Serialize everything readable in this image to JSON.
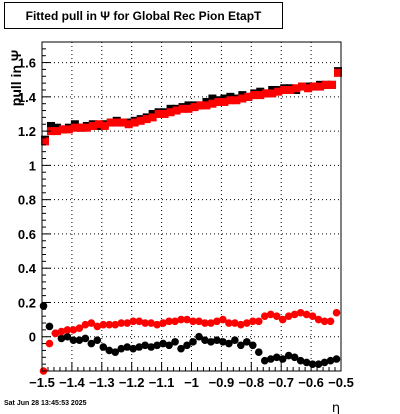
{
  "title": "Fitted pull in  Ψ  for Global Rec Pion EtapT",
  "timestamp": "Sat Jun 28 13:45:53 2025",
  "chart_data": {
    "type": "scatter",
    "title": "Fitted pull in  Ψ  for Global Rec Pion EtapT",
    "xlabel": "η",
    "ylabel": "pull in Ψ",
    "xlim": [
      -1.5,
      -0.5
    ],
    "ylim": [
      -0.2,
      1.72
    ],
    "grid": true,
    "xticks": [
      -1.5,
      -1.4,
      -1.3,
      -1.2,
      -1.1,
      -1.0,
      -0.9,
      -0.8,
      -0.7,
      -0.6,
      -0.5
    ],
    "xtick_labels": [
      "−1.5",
      "−1.4",
      "−1.3",
      "−1.2",
      "−1.1",
      "−1",
      "−0.9",
      "−0.8",
      "−0.7",
      "−0.6",
      "−0.5"
    ],
    "yticks": [
      0,
      0.2,
      0.4,
      0.6,
      0.8,
      1.0,
      1.2,
      1.4,
      1.6
    ],
    "ytick_labels": [
      "0",
      "0.2",
      "0.4",
      "0.6",
      "0.8",
      "1",
      "1.2",
      "1.4",
      "1.6"
    ],
    "series": [
      {
        "name": "",
        "color": "#000000",
        "marker": "square",
        "x": [
          -1.49,
          -1.47,
          -1.45,
          -1.43,
          -1.41,
          -1.39,
          -1.37,
          -1.35,
          -1.33,
          -1.31,
          -1.29,
          -1.27,
          -1.25,
          -1.23,
          -1.21,
          -1.19,
          -1.17,
          -1.15,
          -1.13,
          -1.11,
          -1.09,
          -1.07,
          -1.05,
          -1.03,
          -1.01,
          -0.99,
          -0.97,
          -0.95,
          -0.93,
          -0.91,
          -0.89,
          -0.87,
          -0.85,
          -0.83,
          -0.81,
          -0.79,
          -0.77,
          -0.75,
          -0.73,
          -0.71,
          -0.69,
          -0.67,
          -0.65,
          -0.63,
          -0.61,
          -0.59,
          -0.57,
          -0.55,
          -0.53,
          -0.51
        ],
        "y": [
          1.15,
          1.23,
          1.22,
          1.21,
          1.22,
          1.24,
          1.22,
          1.23,
          1.24,
          1.23,
          1.24,
          1.25,
          1.26,
          1.25,
          1.25,
          1.26,
          1.27,
          1.28,
          1.3,
          1.31,
          1.31,
          1.33,
          1.33,
          1.34,
          1.35,
          1.35,
          1.35,
          1.37,
          1.39,
          1.38,
          1.39,
          1.4,
          1.39,
          1.41,
          1.4,
          1.42,
          1.43,
          1.42,
          1.44,
          1.44,
          1.45,
          1.45,
          1.44,
          1.46,
          1.46,
          1.46,
          1.47,
          1.47,
          1.47,
          1.55
        ]
      },
      {
        "name": "",
        "color": "#ff0000",
        "marker": "square",
        "x": [
          -1.49,
          -1.47,
          -1.45,
          -1.43,
          -1.41,
          -1.39,
          -1.37,
          -1.35,
          -1.33,
          -1.31,
          -1.29,
          -1.27,
          -1.25,
          -1.23,
          -1.21,
          -1.19,
          -1.17,
          -1.15,
          -1.13,
          -1.11,
          -1.09,
          -1.07,
          -1.05,
          -1.03,
          -1.01,
          -0.99,
          -0.97,
          -0.95,
          -0.93,
          -0.91,
          -0.89,
          -0.87,
          -0.85,
          -0.83,
          -0.81,
          -0.79,
          -0.77,
          -0.75,
          -0.73,
          -0.71,
          -0.69,
          -0.67,
          -0.65,
          -0.63,
          -0.61,
          -0.59,
          -0.57,
          -0.55,
          -0.53,
          -0.51
        ],
        "y": [
          1.14,
          1.2,
          1.2,
          1.21,
          1.21,
          1.22,
          1.22,
          1.22,
          1.23,
          1.24,
          1.23,
          1.25,
          1.25,
          1.25,
          1.24,
          1.25,
          1.26,
          1.27,
          1.28,
          1.3,
          1.3,
          1.31,
          1.32,
          1.33,
          1.33,
          1.34,
          1.35,
          1.35,
          1.36,
          1.37,
          1.37,
          1.38,
          1.38,
          1.39,
          1.4,
          1.41,
          1.41,
          1.42,
          1.42,
          1.43,
          1.44,
          1.44,
          1.45,
          1.46,
          1.45,
          1.46,
          1.46,
          1.47,
          1.47,
          1.54
        ]
      },
      {
        "name": "",
        "color": "#000000",
        "marker": "circle",
        "x": [
          -1.495,
          -1.475,
          -1.455,
          -1.435,
          -1.415,
          -1.395,
          -1.375,
          -1.355,
          -1.335,
          -1.315,
          -1.295,
          -1.275,
          -1.255,
          -1.235,
          -1.215,
          -1.195,
          -1.175,
          -1.155,
          -1.135,
          -1.115,
          -1.095,
          -1.075,
          -1.055,
          -1.035,
          -1.015,
          -0.995,
          -0.975,
          -0.955,
          -0.935,
          -0.915,
          -0.895,
          -0.875,
          -0.855,
          -0.835,
          -0.815,
          -0.795,
          -0.775,
          -0.755,
          -0.735,
          -0.715,
          -0.695,
          -0.675,
          -0.655,
          -0.635,
          -0.615,
          -0.595,
          -0.575,
          -0.555,
          -0.535,
          -0.515
        ],
        "y": [
          0.18,
          0.06,
          0.02,
          -0.01,
          0.0,
          -0.02,
          -0.02,
          -0.01,
          -0.04,
          -0.02,
          -0.06,
          -0.08,
          -0.09,
          -0.07,
          -0.06,
          -0.07,
          -0.06,
          -0.05,
          -0.06,
          -0.05,
          -0.04,
          -0.05,
          -0.03,
          -0.07,
          -0.05,
          -0.03,
          0.0,
          -0.02,
          -0.03,
          -0.02,
          -0.03,
          -0.04,
          -0.02,
          -0.05,
          -0.03,
          -0.05,
          -0.09,
          -0.14,
          -0.13,
          -0.12,
          -0.13,
          -0.11,
          -0.12,
          -0.14,
          -0.15,
          -0.16,
          -0.16,
          -0.15,
          -0.14,
          -0.13
        ]
      },
      {
        "name": "",
        "color": "#ff0000",
        "marker": "circle",
        "x": [
          -1.495,
          -1.475,
          -1.455,
          -1.435,
          -1.415,
          -1.395,
          -1.375,
          -1.355,
          -1.335,
          -1.315,
          -1.295,
          -1.275,
          -1.255,
          -1.235,
          -1.215,
          -1.195,
          -1.175,
          -1.155,
          -1.135,
          -1.115,
          -1.095,
          -1.075,
          -1.055,
          -1.035,
          -1.015,
          -0.995,
          -0.975,
          -0.955,
          -0.935,
          -0.915,
          -0.895,
          -0.875,
          -0.855,
          -0.835,
          -0.815,
          -0.795,
          -0.775,
          -0.755,
          -0.735,
          -0.715,
          -0.695,
          -0.675,
          -0.655,
          -0.635,
          -0.615,
          -0.595,
          -0.575,
          -0.555,
          -0.535,
          -0.515
        ],
        "y": [
          -0.2,
          -0.04,
          0.02,
          0.03,
          0.04,
          0.04,
          0.05,
          0.07,
          0.08,
          0.06,
          0.07,
          0.07,
          0.07,
          0.08,
          0.08,
          0.09,
          0.09,
          0.08,
          0.08,
          0.07,
          0.08,
          0.09,
          0.09,
          0.1,
          0.1,
          0.09,
          0.09,
          0.08,
          0.08,
          0.09,
          0.1,
          0.08,
          0.08,
          0.07,
          0.08,
          0.09,
          0.09,
          0.12,
          0.13,
          0.12,
          0.1,
          0.12,
          0.13,
          0.14,
          0.13,
          0.12,
          0.1,
          0.09,
          0.09,
          0.14
        ]
      }
    ]
  }
}
